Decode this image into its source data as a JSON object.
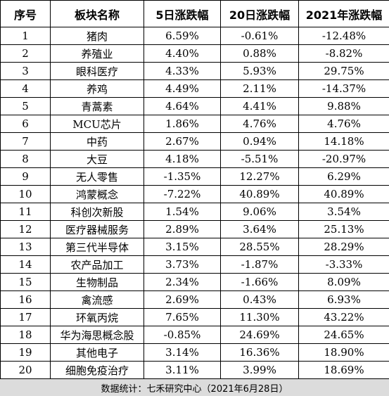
{
  "table": {
    "headers": [
      "序号",
      "板块名称",
      "5日涨跌幅",
      "20日涨跌幅",
      "2021年涨跌幅"
    ],
    "rows": [
      [
        "1",
        "猪肉",
        "6.59%",
        "-0.61%",
        "-12.48%"
      ],
      [
        "2",
        "养殖业",
        "4.40%",
        "0.88%",
        "-8.82%"
      ],
      [
        "3",
        "眼科医疗",
        "4.33%",
        "5.93%",
        "29.75%"
      ],
      [
        "4",
        "养鸡",
        "4.49%",
        "2.11%",
        "-14.37%"
      ],
      [
        "5",
        "青蒿素",
        "4.64%",
        "4.41%",
        "9.88%"
      ],
      [
        "6",
        "MCU芯片",
        "1.86%",
        "4.76%",
        "4.76%"
      ],
      [
        "7",
        "中药",
        "2.67%",
        "0.94%",
        "14.18%"
      ],
      [
        "8",
        "大豆",
        "4.18%",
        "-5.51%",
        "-20.97%"
      ],
      [
        "9",
        "无人零售",
        "-1.35%",
        "12.27%",
        "6.29%"
      ],
      [
        "10",
        "鸿蒙概念",
        "-7.22%",
        "40.89%",
        "40.89%"
      ],
      [
        "11",
        "科创次新股",
        "1.54%",
        "9.06%",
        "3.54%"
      ],
      [
        "12",
        "医疗器械服务",
        "2.89%",
        "3.64%",
        "25.13%"
      ],
      [
        "13",
        "第三代半导体",
        "3.15%",
        "28.55%",
        "28.29%"
      ],
      [
        "14",
        "农产品加工",
        "3.73%",
        "-1.87%",
        "-3.33%"
      ],
      [
        "15",
        "生物制品",
        "2.34%",
        "-1.66%",
        "8.09%"
      ],
      [
        "16",
        "禽流感",
        "2.69%",
        "0.43%",
        "6.93%"
      ],
      [
        "17",
        "环氧丙烷",
        "7.65%",
        "11.30%",
        "43.22%"
      ],
      [
        "18",
        "华为海思概念股",
        "-0.85%",
        "24.69%",
        "24.65%"
      ],
      [
        "19",
        "其他电子",
        "3.14%",
        "16.36%",
        "18.90%"
      ],
      [
        "20",
        "细胞免疫治疗",
        "3.11%",
        "3.99%",
        "18.69%"
      ]
    ]
  },
  "footer": {
    "source": "数据统计：七禾研究中心（2021年6月28日）"
  }
}
